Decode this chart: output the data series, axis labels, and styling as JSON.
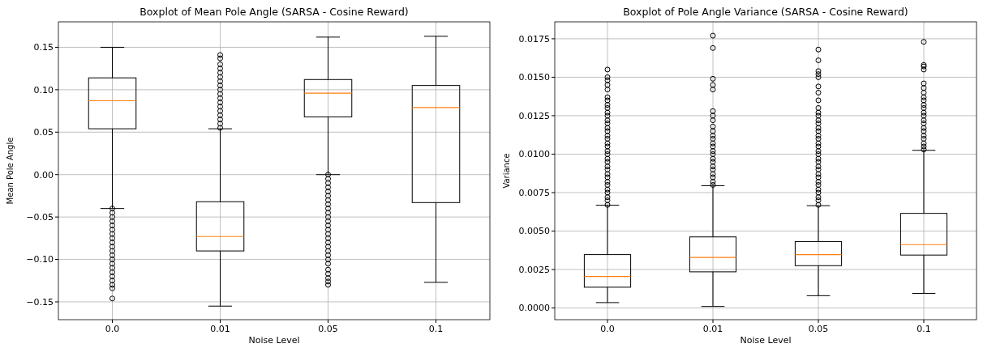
{
  "chart_data": [
    {
      "type": "box",
      "title": "Boxplot of Mean Pole Angle (SARSA - Cosine Reward)",
      "xlabel": "Noise Level",
      "ylabel": "Mean Pole Angle",
      "categories": [
        "0.0",
        "0.01",
        "0.05",
        "0.1"
      ],
      "color": "#000000",
      "grid": true,
      "ylim": [
        -0.171,
        0.18
      ],
      "yticks": [
        {
          "value": -0.15,
          "label": "−0.15"
        },
        {
          "value": -0.1,
          "label": "−0.10"
        },
        {
          "value": -0.05,
          "label": "−0.05"
        },
        {
          "value": 0,
          "label": "0.00"
        },
        {
          "value": 0.05,
          "label": "0.05"
        },
        {
          "value": 0.1,
          "label": "0.10"
        },
        {
          "value": 0.15,
          "label": "0.15"
        }
      ],
      "boxes": [
        {
          "low": -0.04,
          "q1": 0.054,
          "median": 0.087,
          "q3": 0.114,
          "high": 0.15,
          "outliers": [
            -0.04,
            -0.045,
            -0.05,
            -0.055,
            -0.06,
            -0.065,
            -0.07,
            -0.075,
            -0.08,
            -0.085,
            -0.09,
            -0.095,
            -0.1,
            -0.105,
            -0.11,
            -0.115,
            -0.12,
            -0.125,
            -0.13,
            -0.134,
            -0.146
          ]
        },
        {
          "low": -0.155,
          "q1": -0.09,
          "median": -0.073,
          "q3": -0.032,
          "high": 0.054,
          "outliers": [
            0.055,
            0.06,
            0.065,
            0.07,
            0.075,
            0.08,
            0.085,
            0.09,
            0.095,
            0.1,
            0.105,
            0.11,
            0.115,
            0.12,
            0.125,
            0.13,
            0.137,
            0.141
          ]
        },
        {
          "low": 0,
          "q1": 0.068,
          "median": 0.096,
          "q3": 0.112,
          "high": 0.162,
          "outliers": [
            0,
            -0.005,
            -0.01,
            -0.015,
            -0.02,
            -0.025,
            -0.03,
            -0.035,
            -0.04,
            -0.045,
            -0.05,
            -0.055,
            -0.06,
            -0.065,
            -0.07,
            -0.075,
            -0.08,
            -0.085,
            -0.09,
            -0.095,
            -0.1,
            -0.105,
            -0.112,
            -0.117,
            -0.122,
            -0.126,
            -0.13
          ]
        },
        {
          "low": -0.127,
          "q1": -0.033,
          "median": 0.079,
          "q3": 0.105,
          "high": 0.163
        }
      ]
    },
    {
      "type": "box",
      "title": "Boxplot of Pole Angle Variance (SARSA - Cosine Reward)",
      "xlabel": "Noise Level",
      "ylabel": "Variance",
      "categories": [
        "0.0",
        "0.01",
        "0.05",
        "0.1"
      ],
      "color": "#000000",
      "grid": true,
      "ylim": [
        -0.00076,
        0.0186
      ],
      "yticks": [
        {
          "value": 0,
          "label": "0.0000"
        },
        {
          "value": 0.0025,
          "label": "0.0025"
        },
        {
          "value": 0.005,
          "label": "0.0050"
        },
        {
          "value": 0.0075,
          "label": "0.0075"
        },
        {
          "value": 0.01,
          "label": "0.0100"
        },
        {
          "value": 0.0125,
          "label": "0.0125"
        },
        {
          "value": 0.015,
          "label": "0.0150"
        },
        {
          "value": 0.0175,
          "label": "0.0175"
        }
      ],
      "boxes": [
        {
          "low": 0.00035,
          "q1": 0.00135,
          "median": 0.00205,
          "q3": 0.00347,
          "high": 0.00668,
          "outliers": [
            0.0067,
            0.007,
            0.0072,
            0.0075,
            0.0077,
            0.008,
            0.0082,
            0.0085,
            0.0087,
            0.009,
            0.0092,
            0.0095,
            0.0097,
            0.01,
            0.0102,
            0.0105,
            0.0107,
            0.011,
            0.0112,
            0.0115,
            0.0117,
            0.012,
            0.0122,
            0.0125,
            0.0127,
            0.013,
            0.0132,
            0.0135,
            0.0137,
            0.0142,
            0.0145,
            0.0148,
            0.015,
            0.0155
          ]
        },
        {
          "low": 0.0001,
          "q1": 0.00235,
          "median": 0.00328,
          "q3": 0.00462,
          "high": 0.00795,
          "outliers": [
            0.008,
            0.0082,
            0.0085,
            0.0087,
            0.009,
            0.0092,
            0.0095,
            0.0097,
            0.01,
            0.0102,
            0.0105,
            0.0107,
            0.011,
            0.0112,
            0.0115,
            0.0118,
            0.0122,
            0.0125,
            0.0128,
            0.0142,
            0.0145,
            0.0149,
            0.0169,
            0.0177
          ]
        },
        {
          "low": 0.0008,
          "q1": 0.00275,
          "median": 0.00347,
          "q3": 0.00432,
          "high": 0.00665,
          "outliers": [
            0.0067,
            0.007,
            0.0072,
            0.0075,
            0.0077,
            0.008,
            0.0082,
            0.0085,
            0.0087,
            0.009,
            0.0092,
            0.0095,
            0.0097,
            0.01,
            0.0102,
            0.0105,
            0.0107,
            0.011,
            0.0112,
            0.0115,
            0.0117,
            0.012,
            0.0122,
            0.0125,
            0.0127,
            0.013,
            0.0135,
            0.014,
            0.0144,
            0.015,
            0.0152,
            0.0154,
            0.0161,
            0.0168
          ]
        },
        {
          "low": 0.00095,
          "q1": 0.00344,
          "median": 0.00412,
          "q3": 0.00615,
          "high": 0.01025,
          "outliers": [
            0.0103,
            0.0105,
            0.0107,
            0.011,
            0.0112,
            0.0115,
            0.0117,
            0.012,
            0.0122,
            0.0125,
            0.0127,
            0.013,
            0.0132,
            0.0135,
            0.0137,
            0.014,
            0.0143,
            0.0146,
            0.0155,
            0.0157,
            0.0158,
            0.0173
          ]
        }
      ]
    }
  ]
}
